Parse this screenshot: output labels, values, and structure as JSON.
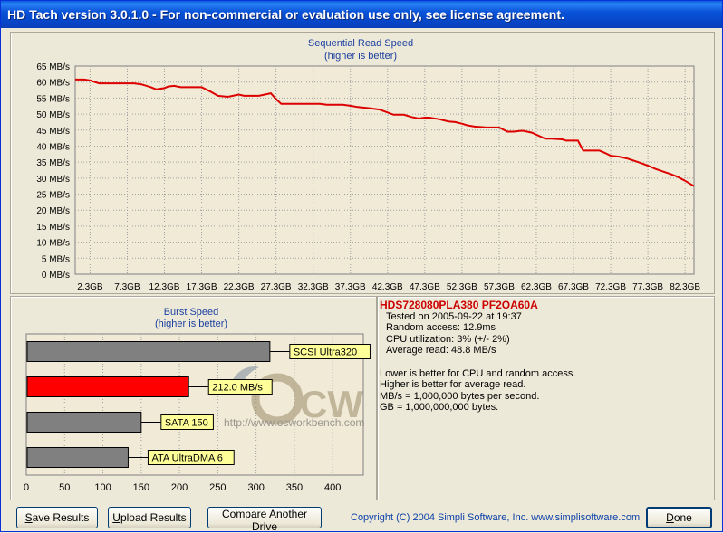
{
  "window": {
    "title": "HD Tach version 3.0.1.0  - For non-commercial or evaluation use only, see license agreement."
  },
  "seq_chart": {
    "title_line1": "Sequential Read Speed",
    "title_line2": "(higher is better)",
    "line_color": "#dd0000"
  },
  "burst_chart": {
    "title_line1": "Burst Speed",
    "title_line2": "(higher is better)"
  },
  "watermark": {
    "url_text": "http://www.ocworkbench.com"
  },
  "chart_data": [
    {
      "type": "line",
      "title": "Sequential Read Speed",
      "subtitle": "(higher is better)",
      "ylim": [
        0,
        65
      ],
      "xlim": [
        0.3,
        83.5
      ],
      "y_ticks": [
        "0 MB/s",
        "5 MB/s",
        "10 MB/s",
        "15 MB/s",
        "20 MB/s",
        "25 MB/s",
        "30 MB/s",
        "35 MB/s",
        "40 MB/s",
        "45 MB/s",
        "50 MB/s",
        "55 MB/s",
        "60 MB/s",
        "65 MB/s"
      ],
      "x_ticks": [
        "2.3GB",
        "7.3GB",
        "12.3GB",
        "17.3GB",
        "22.3GB",
        "27.3GB",
        "32.3GB",
        "37.3GB",
        "42.3GB",
        "47.3GB",
        "52.3GB",
        "57.3GB",
        "62.3GB",
        "67.3GB",
        "72.3GB",
        "77.3GB",
        "82.3GB"
      ],
      "grid": true,
      "series": [
        {
          "x": [
            0.3,
            1.5,
            2.3,
            3.5,
            5.3,
            8.2,
            9.2,
            10.5,
            11.2,
            12.3,
            12.8,
            13.6,
            14.5,
            15.4,
            16.2,
            17.3,
            18.5,
            19.5,
            20.8,
            21.5,
            22.3,
            23.0,
            24.2,
            25.0,
            25.8,
            26.6,
            27.3,
            28.0,
            29.3,
            31.1,
            32.1,
            33.2,
            34.1,
            35.4,
            36.3,
            37.3,
            38.3,
            40.0,
            41.2,
            42.3,
            43.1,
            44.5,
            45.5,
            46.5,
            47.3,
            47.9,
            49.2,
            50.5,
            51.4,
            52.3,
            53.0,
            54.0,
            55.6,
            56.3,
            57.3,
            58.4,
            59.3,
            60.0,
            60.5,
            61.7,
            63.5,
            64.3,
            65.8,
            66.3,
            67.3,
            67.9,
            68.6,
            69.8,
            70.8,
            71.5,
            72.3,
            73.4,
            74.6,
            75.6,
            76.5,
            77.3,
            78.3,
            79.3,
            80.3,
            81.2,
            82.3,
            83.5
          ],
          "y": [
            60.8,
            60.8,
            60.5,
            59.6,
            59.6,
            59.6,
            59.3,
            58.4,
            57.7,
            58.1,
            58.6,
            58.8,
            58.4,
            58.4,
            58.4,
            58.4,
            57.0,
            55.7,
            55.4,
            55.7,
            56.1,
            55.7,
            55.7,
            55.7,
            56.1,
            56.5,
            54.7,
            53.2,
            53.2,
            53.2,
            53.2,
            53.2,
            52.9,
            52.9,
            52.9,
            52.6,
            52.2,
            51.8,
            51.4,
            50.5,
            49.8,
            49.8,
            49.1,
            48.6,
            48.9,
            48.9,
            48.4,
            47.7,
            47.5,
            47.0,
            46.5,
            46.1,
            45.8,
            45.8,
            45.8,
            44.5,
            44.5,
            44.7,
            44.8,
            44.2,
            42.3,
            42.3,
            42.1,
            41.7,
            41.7,
            41.7,
            38.6,
            38.6,
            38.6,
            37.9,
            37.0,
            36.7,
            36.1,
            35.3,
            34.6,
            33.9,
            32.9,
            32.1,
            31.3,
            30.5,
            29.2,
            27.5
          ]
        }
      ]
    },
    {
      "type": "bar",
      "orientation": "horizontal",
      "title": "Burst Speed",
      "subtitle": "(higher is better)",
      "xlim": [
        0,
        440
      ],
      "x_ticks": [
        0,
        50,
        100,
        150,
        200,
        250,
        300,
        350,
        400
      ],
      "grid": true,
      "categories": [
        "SCSI Ultra320",
        "212.0 MB/s",
        "SATA 150",
        "ATA UltraDMA 6"
      ],
      "values": [
        318,
        212,
        150,
        133
      ],
      "colors": [
        "#808080",
        "#ff0000",
        "#808080",
        "#808080"
      ]
    }
  ],
  "info": {
    "drive": "HDS728080PLA380 PF2OA60A",
    "tested": "Tested on 2005-09-22 at 19:37",
    "random_access": "Random access: 12.9ms",
    "cpu": "CPU utilization: 3% (+/- 2%)",
    "average_read": "Average read: 48.8 MB/s",
    "note1": "Lower is better for CPU and random access.",
    "note2": "Higher is better for average read.",
    "note3": "MB/s = 1,000,000 bytes per second.",
    "note4": "GB = 1,000,000,000 bytes."
  },
  "buttons": {
    "save": "ave Results",
    "save_mnemonic": "S",
    "upload": "pload Results",
    "upload_mnemonic": "U",
    "compare": "ompare Another Drive",
    "compare_mnemonic": "C",
    "done": "one",
    "done_mnemonic": "D"
  },
  "footer": {
    "copyright": "Copyright (C) 2004 Simpli Software, Inc. www.simplisoftware.com"
  }
}
